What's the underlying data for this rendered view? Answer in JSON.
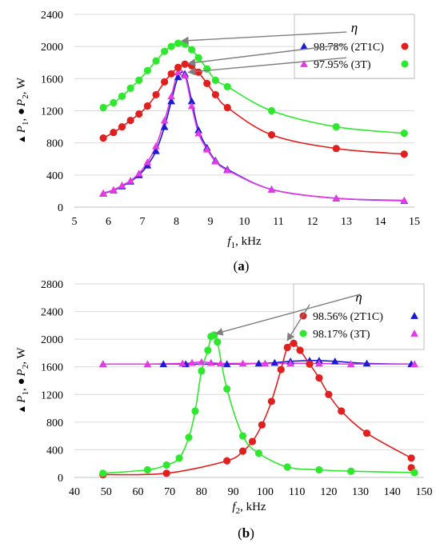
{
  "chart_data": [
    {
      "type": "line",
      "panel_label": "(a)",
      "xlabel": {
        "var": "f",
        "sub": "1",
        "unit": ", kHz"
      },
      "ylabel": {
        "parts": [
          "▲",
          "P",
          "1",
          ", ●",
          "P",
          "2",
          ", W"
        ]
      },
      "xlim": [
        5,
        15
      ],
      "xticks": [
        5,
        6,
        7,
        8,
        9,
        10,
        11,
        12,
        13,
        14,
        15
      ],
      "ylim": [
        0,
        2400
      ],
      "yticks": [
        0,
        400,
        800,
        1200,
        1600,
        2000,
        2400
      ],
      "grid": "horizontal",
      "legend": {
        "placement": "top-right",
        "title": "η",
        "rows": [
          {
            "text": "98.78% (2T1C)",
            "colors": [
              "#1a1ad6",
              "#e01f1f"
            ]
          },
          {
            "text": "97.95% (3T)",
            "colors": [
              "#e33ae3",
              "#2ee82e"
            ]
          }
        ]
      },
      "series": [
        {
          "marker": "triangle",
          "color": "#1a1ad6",
          "x": [
            5.85,
            6.15,
            6.4,
            6.65,
            6.9,
            7.15,
            7.4,
            7.65,
            7.85,
            8.05,
            8.25,
            8.45,
            8.65,
            8.9,
            9.15,
            9.5,
            10.8,
            12.7,
            14.7
          ],
          "y": [
            170,
            210,
            260,
            320,
            400,
            520,
            700,
            1000,
            1320,
            1620,
            1660,
            1320,
            960,
            740,
            580,
            470,
            220,
            110,
            80
          ]
        },
        {
          "marker": "triangle",
          "color": "#e33ae3",
          "x": [
            5.85,
            6.15,
            6.4,
            6.65,
            6.9,
            7.15,
            7.4,
            7.65,
            7.85,
            8.05,
            8.25,
            8.45,
            8.65,
            8.9,
            9.15,
            9.5,
            10.8,
            12.7,
            14.7
          ],
          "y": [
            175,
            215,
            270,
            330,
            420,
            560,
            760,
            1080,
            1380,
            1680,
            1640,
            1260,
            920,
            720,
            570,
            460,
            220,
            110,
            85
          ]
        },
        {
          "marker": "circle",
          "color": "#e01f1f",
          "x": [
            5.85,
            6.15,
            6.4,
            6.65,
            6.9,
            7.15,
            7.4,
            7.65,
            7.85,
            8.05,
            8.25,
            8.45,
            8.65,
            8.9,
            9.15,
            9.5,
            10.8,
            12.7,
            14.7
          ],
          "y": [
            860,
            930,
            1000,
            1080,
            1160,
            1260,
            1400,
            1560,
            1660,
            1740,
            1780,
            1760,
            1680,
            1540,
            1400,
            1240,
            900,
            730,
            660
          ]
        },
        {
          "marker": "circle",
          "color": "#2ee82e",
          "x": [
            5.85,
            6.15,
            6.4,
            6.65,
            6.9,
            7.15,
            7.4,
            7.65,
            7.85,
            8.05,
            8.25,
            8.45,
            8.65,
            8.9,
            9.15,
            9.5,
            10.8,
            12.7,
            14.7
          ],
          "y": [
            1240,
            1300,
            1380,
            1480,
            1580,
            1700,
            1820,
            1940,
            2000,
            2040,
            2030,
            1960,
            1860,
            1720,
            1580,
            1500,
            1200,
            1000,
            920
          ]
        }
      ],
      "arrows": [
        {
          "from": [
            13.0,
            2180
          ],
          "to": [
            8.15,
            2070
          ]
        },
        {
          "from": [
            13.0,
            2030
          ],
          "to": [
            8.35,
            1790
          ]
        },
        {
          "from": [
            13.0,
            1860
          ],
          "to": [
            8.35,
            1680
          ]
        }
      ]
    },
    {
      "type": "line",
      "panel_label": "(b)",
      "xlabel": {
        "var": "f",
        "sub": "2",
        "unit": ", kHz"
      },
      "ylabel": {
        "parts": [
          "▲",
          "P",
          "1",
          ", ●",
          "P",
          "2",
          ", W"
        ]
      },
      "xlim": [
        40,
        150
      ],
      "xticks": [
        40,
        50,
        60,
        70,
        80,
        90,
        100,
        110,
        120,
        130,
        140,
        150
      ],
      "ylim": [
        0,
        2800
      ],
      "yticks": [
        0,
        400,
        800,
        1200,
        1600,
        2000,
        2400,
        2800
      ],
      "grid": "horizontal",
      "legend": {
        "placement": "top-right",
        "title": "η",
        "rows": [
          {
            "text": "98.56% (2T1C)",
            "colors": [
              "#e01f1f",
              "#1a1ad6"
            ]
          },
          {
            "text": "98.17% (3T)",
            "colors": [
              "#2ee82e",
              "#e33ae3"
            ]
          }
        ]
      },
      "series": [
        {
          "marker": "triangle",
          "color": "#1a1ad6",
          "x": [
            49,
            68,
            75,
            88,
            98,
            103,
            108,
            114,
            117,
            122,
            132,
            146
          ],
          "y": [
            1640,
            1640,
            1640,
            1640,
            1650,
            1660,
            1680,
            1690,
            1690,
            1680,
            1650,
            1640
          ]
        },
        {
          "marker": "triangle",
          "color": "#e33ae3",
          "x": [
            49,
            63,
            74,
            77,
            80,
            83,
            86,
            93,
            100,
            108,
            117,
            127,
            147
          ],
          "y": [
            1640,
            1640,
            1650,
            1660,
            1670,
            1660,
            1650,
            1650,
            1650,
            1650,
            1650,
            1640,
            1640
          ]
        },
        {
          "marker": "circle",
          "color": "#e01f1f",
          "x": [
            49,
            69,
            88,
            93,
            96,
            99,
            102,
            105,
            107,
            109,
            111,
            114,
            117,
            120,
            124,
            132,
            146
          ],
          "y": [
            40,
            60,
            240,
            380,
            520,
            760,
            1100,
            1560,
            1880,
            1940,
            1840,
            1640,
            1440,
            1200,
            960,
            640,
            280
          ],
          "extra": [
            [
              146,
              140
            ]
          ]
        },
        {
          "marker": "circle",
          "color": "#2ee82e",
          "x": [
            49,
            63,
            69,
            73,
            76,
            78,
            80,
            82,
            83,
            84,
            85,
            88,
            93,
            98,
            107,
            117,
            127,
            147
          ],
          "y": [
            60,
            110,
            180,
            280,
            580,
            960,
            1540,
            1840,
            2040,
            2060,
            1960,
            1280,
            600,
            350,
            150,
            110,
            90,
            70
          ]
        }
      ],
      "arrows": [
        {
          "from": [
            130.0,
            2650
          ],
          "to": [
            84.5,
            2080
          ]
        },
        {
          "from": [
            114.0,
            2500
          ],
          "to": [
            107.0,
            1980
          ]
        }
      ]
    }
  ]
}
